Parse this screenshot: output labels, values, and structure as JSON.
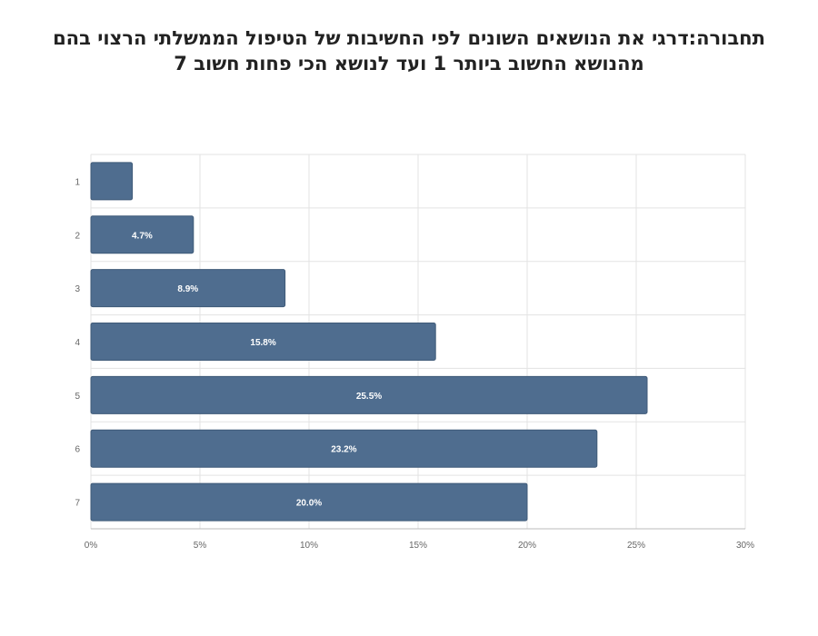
{
  "chart_data": {
    "type": "bar",
    "orientation": "horizontal",
    "title_lines": [
      "תחבורה:דרגי את הנושאים השונים לפי החשיבות של הטיפול הממשלתי הרצוי בהם",
      "מהנושא החשוב ביותר 1 ועד לנושא הכי פחות חשוב 7"
    ],
    "categories": [
      "1",
      "2",
      "3",
      "4",
      "5",
      "6",
      "7"
    ],
    "values": [
      1.9,
      4.7,
      8.9,
      15.8,
      25.5,
      23.2,
      20.0
    ],
    "data_labels": [
      "",
      "4.7%",
      "8.9%",
      "15.8%",
      "25.5%",
      "23.2%",
      "20.0%"
    ],
    "xlim": [
      0,
      30
    ],
    "x_ticks": [
      0,
      5,
      10,
      15,
      20,
      25,
      30
    ],
    "x_tick_labels": [
      "0%",
      "5%",
      "10%",
      "15%",
      "20%",
      "25%",
      "30%"
    ],
    "grid": true,
    "bar_color": "#4f6d8f",
    "grid_color": "#e3e3e3"
  }
}
